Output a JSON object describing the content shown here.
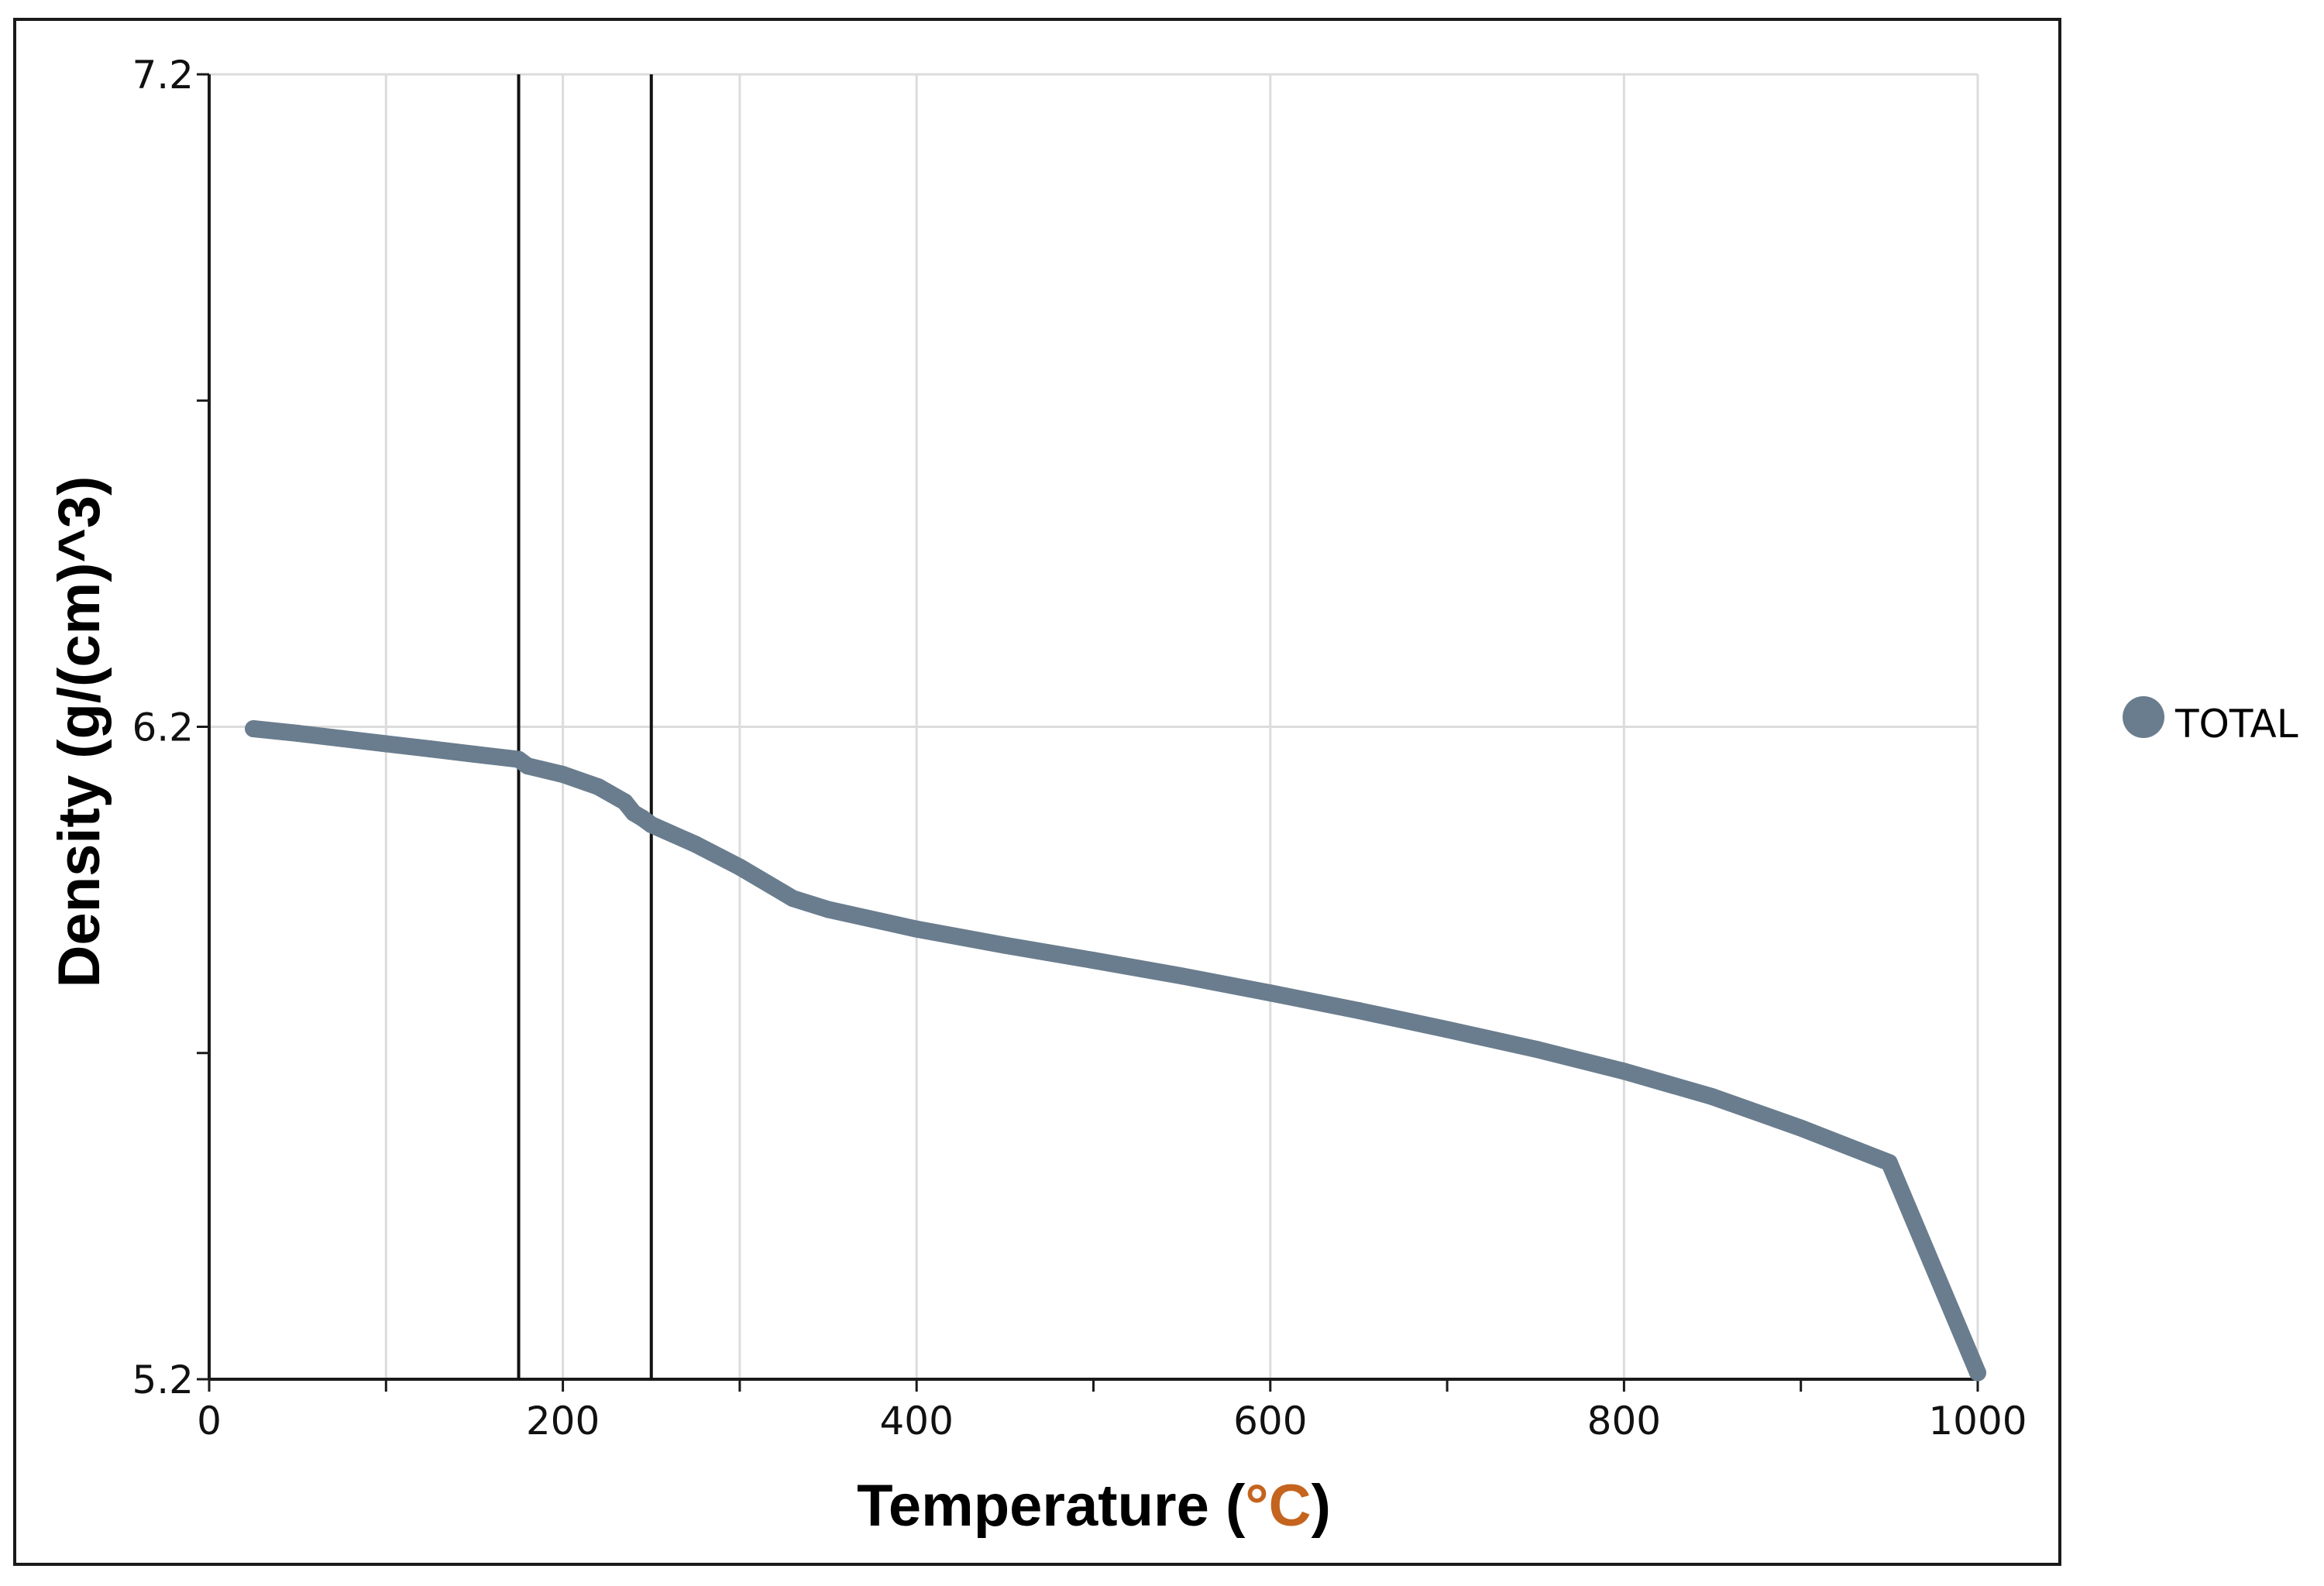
{
  "chart_data": {
    "type": "line",
    "title": "",
    "xlabel": "Temperature (",
    "xlabel_unit": "°C",
    "xlabel_close": ")",
    "ylabel": "Density (g/(cm)^3)",
    "xlim": [
      0,
      1000
    ],
    "ylim": [
      5.2,
      7.2
    ],
    "grid": true,
    "legend_position": "right",
    "x_ticks": [
      "0",
      "200",
      "400",
      "600",
      "800",
      "1000"
    ],
    "y_ticks": [
      "5.2",
      "6.2",
      "7.2"
    ],
    "vertical_markers": [
      175,
      250
    ],
    "series": [
      {
        "name": "TOTAL",
        "color": "#6a7d8e",
        "points": [
          [
            25,
            6.197
          ],
          [
            50,
            6.19
          ],
          [
            75,
            6.182
          ],
          [
            100,
            6.174
          ],
          [
            125,
            6.166
          ],
          [
            150,
            6.158
          ],
          [
            175,
            6.15
          ],
          [
            180,
            6.14
          ],
          [
            200,
            6.127
          ],
          [
            220,
            6.108
          ],
          [
            235,
            6.085
          ],
          [
            240,
            6.068
          ],
          [
            245,
            6.06
          ],
          [
            250,
            6.05
          ],
          [
            275,
            6.02
          ],
          [
            300,
            5.985
          ],
          [
            325,
            5.945
          ],
          [
            330,
            5.937
          ],
          [
            350,
            5.92
          ],
          [
            400,
            5.89
          ],
          [
            450,
            5.865
          ],
          [
            500,
            5.842
          ],
          [
            550,
            5.818
          ],
          [
            600,
            5.792
          ],
          [
            650,
            5.765
          ],
          [
            700,
            5.736
          ],
          [
            750,
            5.706
          ],
          [
            800,
            5.672
          ],
          [
            850,
            5.633
          ],
          [
            900,
            5.585
          ],
          [
            950,
            5.532
          ],
          [
            1000,
            5.21
          ]
        ]
      }
    ]
  }
}
